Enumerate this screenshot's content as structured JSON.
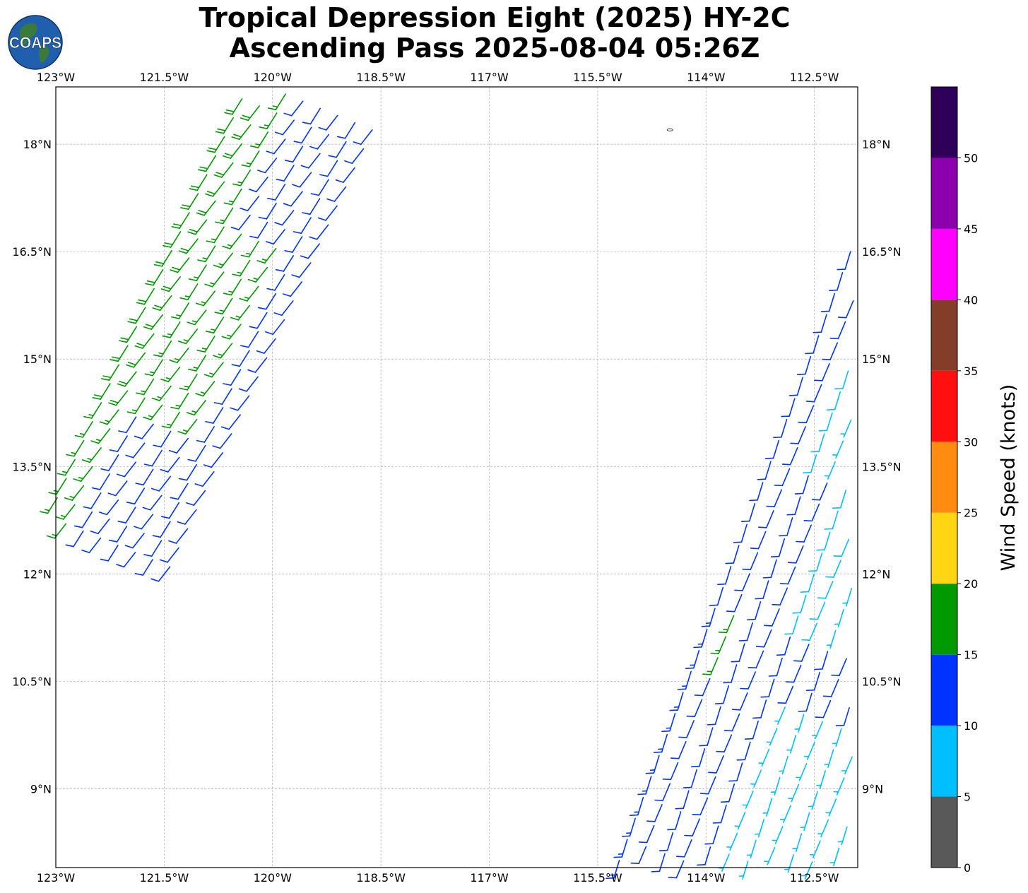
{
  "title": {
    "line1": "Tropical Depression Eight (2025) HY-2C",
    "line2": "Ascending Pass 2025-08-04 05:26Z"
  },
  "logo": {
    "text": "COAPS",
    "colors": {
      "ocean": "#1f5fae",
      "land": "#3b7a3a"
    }
  },
  "map": {
    "projection": "plate carree",
    "lon_range": [
      -123.0,
      -111.9
    ],
    "lat_range": [
      7.9,
      18.8
    ],
    "grid": true,
    "lon_ticks": [
      {
        "value": -123.0,
        "label": "123°W"
      },
      {
        "value": -121.5,
        "label": "121.5°W"
      },
      {
        "value": -120.0,
        "label": "120°W"
      },
      {
        "value": -118.5,
        "label": "118.5°W"
      },
      {
        "value": -117.0,
        "label": "117°W"
      },
      {
        "value": -115.5,
        "label": "115.5°W"
      },
      {
        "value": -114.0,
        "label": "114°W"
      },
      {
        "value": -112.5,
        "label": "112.5°W"
      }
    ],
    "lat_ticks": [
      {
        "value": 18.0,
        "label": "18°N"
      },
      {
        "value": 16.5,
        "label": "16.5°N"
      },
      {
        "value": 15.0,
        "label": "15°N"
      },
      {
        "value": 13.5,
        "label": "13.5°N"
      },
      {
        "value": 12.0,
        "label": "12°N"
      },
      {
        "value": 10.5,
        "label": "10.5°N"
      },
      {
        "value": 9.0,
        "label": "9°N"
      }
    ]
  },
  "swaths": [
    {
      "name": "west-swath",
      "edge_start": {
        "lon": -123.1,
        "lat": 12.8
      },
      "edge_end": {
        "lon": -120.3,
        "lat": 18.9
      },
      "cross_step": {
        "lon": 0.24,
        "lat": -0.1
      },
      "cross_count": 8,
      "row_count": 24,
      "rows_bands": [
        {
          "until_row": 7,
          "by_col": [
            15,
            15,
            12,
            12,
            12,
            12,
            12,
            12
          ]
        },
        {
          "until_row": 17,
          "by_col": [
            18,
            18,
            17,
            17,
            17,
            16,
            12,
            12
          ]
        },
        {
          "until_row": 24,
          "by_col": [
            18,
            18,
            17,
            12,
            12,
            12,
            12,
            12
          ]
        }
      ],
      "wind_dir_from_deg": 215
    },
    {
      "name": "east-swath",
      "edge_start": {
        "lon": -115.2,
        "lat": 8.0
      },
      "edge_end": {
        "lon": -112.0,
        "lat": 16.5
      },
      "cross_step": {
        "lon": 0.26,
        "lat": -0.1
      },
      "cross_count": 12,
      "row_count": 30,
      "rows_bands": [
        {
          "until_row": 10,
          "by_col": [
            13,
            12,
            12,
            12,
            11,
            7,
            7,
            7,
            7,
            7,
            7,
            7
          ]
        },
        {
          "until_row": 13,
          "by_col": [
            13,
            16,
            12,
            12,
            12,
            12,
            11,
            11,
            11,
            8,
            8,
            8
          ]
        },
        {
          "until_row": 20,
          "by_col": [
            12,
            12,
            11,
            11,
            8,
            8,
            7,
            7,
            7,
            7,
            7,
            7
          ]
        },
        {
          "until_row": 30,
          "by_col": [
            12,
            11,
            8,
            7,
            7,
            7,
            7,
            7,
            6,
            6,
            6,
            6
          ]
        }
      ],
      "wind_dir_from_deg": 200
    }
  ],
  "island": {
    "lon": -114.5,
    "lat": 18.2
  },
  "colorbar": {
    "label": "Wind Speed (knots)",
    "bins": [
      {
        "min": 0,
        "max": 5,
        "color": "#595959"
      },
      {
        "min": 5,
        "max": 10,
        "color": "#00bfff"
      },
      {
        "min": 10,
        "max": 15,
        "color": "#0033ff"
      },
      {
        "min": 15,
        "max": 20,
        "color": "#009900"
      },
      {
        "min": 20,
        "max": 25,
        "color": "#ffd514"
      },
      {
        "min": 25,
        "max": 30,
        "color": "#ff8c10"
      },
      {
        "min": 30,
        "max": 35,
        "color": "#ff0f0f"
      },
      {
        "min": 35,
        "max": 40,
        "color": "#833d29"
      },
      {
        "min": 40,
        "max": 45,
        "color": "#ff00ff"
      },
      {
        "min": 45,
        "max": 50,
        "color": "#8c00ad"
      },
      {
        "min": 50,
        "max": 55,
        "color": "#2e005a"
      }
    ],
    "tick_labels": [
      "0",
      "5",
      "10",
      "15",
      "20",
      "25",
      "30",
      "35",
      "40",
      "45",
      "50"
    ]
  }
}
